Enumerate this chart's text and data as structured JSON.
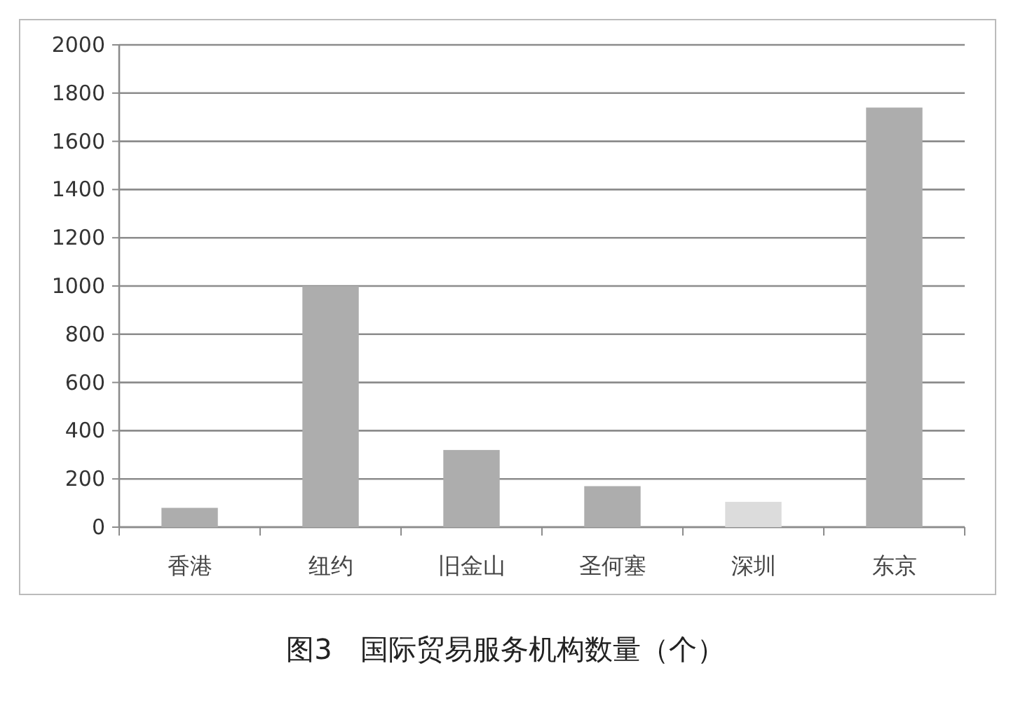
{
  "chart_data": {
    "type": "bar",
    "title": "图3　国际贸易服务机构数量（个）",
    "categories": [
      "香港",
      "纽约",
      "旧金山",
      "圣何塞",
      "深圳",
      "东京"
    ],
    "values": [
      80,
      1000,
      320,
      170,
      105,
      1740
    ],
    "colors": [
      "#adadad",
      "#adadad",
      "#adadad",
      "#adadad",
      "#dcdcdc",
      "#adadad"
    ],
    "ylim": [
      0,
      2000
    ],
    "yticks": [
      0,
      200,
      400,
      600,
      800,
      1000,
      1200,
      1400,
      1600,
      1800,
      2000
    ],
    "grid": "y"
  }
}
